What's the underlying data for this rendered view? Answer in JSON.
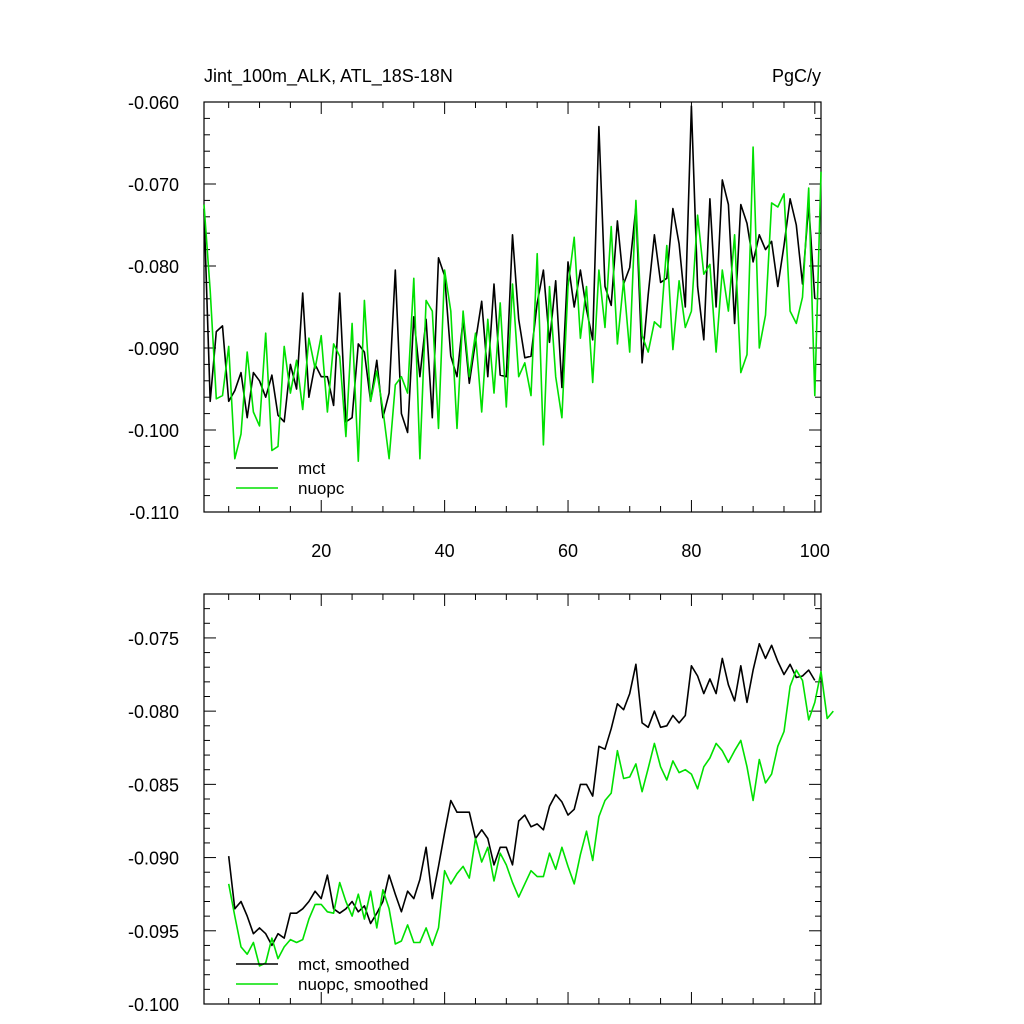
{
  "header": {
    "title": "Jint_100m_ALK, ATL_18S-18N",
    "units": "PgC/y"
  },
  "colors": {
    "mct": "#000000",
    "nuopc": "#00e000"
  },
  "chart_data": [
    {
      "type": "line",
      "xlim": [
        1,
        101
      ],
      "ylim": [
        -0.11,
        -0.06
      ],
      "xticks": [
        20,
        40,
        60,
        80,
        100
      ],
      "xtick_labels": [
        "20",
        "40",
        "60",
        "80",
        "100"
      ],
      "yticks": [
        -0.06,
        -0.07,
        -0.08,
        -0.09,
        -0.1,
        -0.11
      ],
      "ytick_labels": [
        "-0.060",
        "-0.070",
        "-0.080",
        "-0.090",
        "-0.100",
        "-0.110"
      ],
      "legend": {
        "position": "bottom-left"
      },
      "series": [
        {
          "name": "mct",
          "color": "#000000",
          "x_start": 1,
          "values": [
            -0.073,
            -0.0965,
            -0.088,
            -0.0873,
            -0.0965,
            -0.0952,
            -0.093,
            -0.0985,
            -0.093,
            -0.094,
            -0.096,
            -0.0933,
            -0.0982,
            -0.099,
            -0.092,
            -0.095,
            -0.0833,
            -0.096,
            -0.092,
            -0.0935,
            -0.0935,
            -0.097,
            -0.0833,
            -0.099,
            -0.0985,
            -0.0895,
            -0.0905,
            -0.0965,
            -0.0915,
            -0.0985,
            -0.0955,
            -0.0805,
            -0.098,
            -0.1003,
            -0.0862,
            -0.0935,
            -0.0865,
            -0.0985,
            -0.079,
            -0.0812,
            -0.091,
            -0.0935,
            -0.0865,
            -0.0943,
            -0.0892,
            -0.0843,
            -0.0935,
            -0.0822,
            -0.0933,
            -0.0935,
            -0.0762,
            -0.0865,
            -0.0912,
            -0.091,
            -0.0845,
            -0.0805,
            -0.0893,
            -0.0818,
            -0.0948,
            -0.0795,
            -0.085,
            -0.0805,
            -0.0853,
            -0.089,
            -0.063,
            -0.0825,
            -0.0848,
            -0.0745,
            -0.0822,
            -0.0802,
            -0.0728,
            -0.0918,
            -0.0835,
            -0.0762,
            -0.082,
            -0.0815,
            -0.073,
            -0.0773,
            -0.085,
            -0.0605,
            -0.0825,
            -0.089,
            -0.0718,
            -0.085,
            -0.0695,
            -0.0725,
            -0.087,
            -0.0725,
            -0.0748,
            -0.0795,
            -0.0762,
            -0.078,
            -0.077,
            -0.0825,
            -0.0775,
            -0.0718,
            -0.075,
            -0.0822,
            -0.0725,
            -0.084
          ]
        },
        {
          "name": "nuopc",
          "color": "#00e000",
          "x_start": 1,
          "values": [
            -0.0725,
            -0.083,
            -0.0962,
            -0.0958,
            -0.0898,
            -0.1035,
            -0.1005,
            -0.0905,
            -0.0978,
            -0.0995,
            -0.0882,
            -0.1025,
            -0.102,
            -0.0898,
            -0.0955,
            -0.0915,
            -0.0975,
            -0.0888,
            -0.0925,
            -0.0885,
            -0.0978,
            -0.0895,
            -0.091,
            -0.1008,
            -0.087,
            -0.1038,
            -0.0842,
            -0.0965,
            -0.0928,
            -0.0975,
            -0.1035,
            -0.0945,
            -0.0935,
            -0.0955,
            -0.0815,
            -0.1035,
            -0.0842,
            -0.0855,
            -0.0998,
            -0.0805,
            -0.0855,
            -0.0998,
            -0.0855,
            -0.0935,
            -0.0882,
            -0.0978,
            -0.0865,
            -0.0955,
            -0.0845,
            -0.0972,
            -0.0822,
            -0.0935,
            -0.0918,
            -0.0958,
            -0.0785,
            -0.1018,
            -0.0825,
            -0.0935,
            -0.0985,
            -0.0825,
            -0.0765,
            -0.0888,
            -0.0825,
            -0.0942,
            -0.0805,
            -0.0875,
            -0.0752,
            -0.0895,
            -0.0818,
            -0.0905,
            -0.072,
            -0.0885,
            -0.0905,
            -0.0868,
            -0.0875,
            -0.0775,
            -0.0902,
            -0.0818,
            -0.0875,
            -0.0855,
            -0.0738,
            -0.081,
            -0.0798,
            -0.0905,
            -0.0805,
            -0.0855,
            -0.0762,
            -0.093,
            -0.0908,
            -0.0655,
            -0.09,
            -0.086,
            -0.0723,
            -0.0728,
            -0.0712,
            -0.0855,
            -0.087,
            -0.0838,
            -0.0705,
            -0.0958,
            -0.0685
          ]
        }
      ]
    },
    {
      "type": "line",
      "xlim": [
        1,
        101
      ],
      "ylim": [
        -0.1,
        -0.072
      ],
      "xticks": [
        20,
        40,
        60,
        80,
        100
      ],
      "yticks": [
        -0.075,
        -0.08,
        -0.085,
        -0.09,
        -0.095,
        -0.1
      ],
      "ytick_labels": [
        "-0.075",
        "-0.080",
        "-0.085",
        "-0.090",
        "-0.095",
        "-0.100"
      ],
      "legend": {
        "position": "bottom-left"
      },
      "series": [
        {
          "name": "mct, smoothed",
          "color": "#000000",
          "x_start": 5,
          "values": [
            -0.0899,
            -0.0935,
            -0.093,
            -0.094,
            -0.0952,
            -0.0948,
            -0.0952,
            -0.096,
            -0.0952,
            -0.0955,
            -0.0938,
            -0.0938,
            -0.0935,
            -0.093,
            -0.0923,
            -0.0928,
            -0.0912,
            -0.0935,
            -0.0938,
            -0.0935,
            -0.093,
            -0.0937,
            -0.0933,
            -0.0945,
            -0.0938,
            -0.093,
            -0.0912,
            -0.0925,
            -0.0937,
            -0.0923,
            -0.0928,
            -0.0915,
            -0.0893,
            -0.0928,
            -0.0906,
            -0.0883,
            -0.0861,
            -0.0869,
            -0.0869,
            -0.0869,
            -0.0887,
            -0.0881,
            -0.0887,
            -0.0905,
            -0.0893,
            -0.0893,
            -0.0905,
            -0.0875,
            -0.0871,
            -0.0879,
            -0.0877,
            -0.0881,
            -0.0865,
            -0.0857,
            -0.0862,
            -0.0871,
            -0.0867,
            -0.085,
            -0.085,
            -0.0858,
            -0.0824,
            -0.0826,
            -0.0812,
            -0.0795,
            -0.0799,
            -0.0788,
            -0.0768,
            -0.0808,
            -0.0811,
            -0.08,
            -0.0811,
            -0.081,
            -0.0803,
            -0.0808,
            -0.0803,
            -0.0769,
            -0.0776,
            -0.0788,
            -0.0778,
            -0.0788,
            -0.0764,
            -0.0782,
            -0.0793,
            -0.0769,
            -0.0794,
            -0.0772,
            -0.0754,
            -0.0764,
            -0.0755,
            -0.0766,
            -0.0775,
            -0.0768,
            -0.0777,
            -0.0776,
            -0.0772,
            -0.0779
          ]
        },
        {
          "name": "nuopc, smoothed",
          "color": "#00e000",
          "x_start": 5,
          "values": [
            -0.0918,
            -0.094,
            -0.0961,
            -0.0966,
            -0.0958,
            -0.0974,
            -0.0972,
            -0.0955,
            -0.0969,
            -0.0961,
            -0.0956,
            -0.0958,
            -0.0956,
            -0.0942,
            -0.0932,
            -0.0932,
            -0.0937,
            -0.0938,
            -0.0917,
            -0.093,
            -0.094,
            -0.0925,
            -0.0942,
            -0.0923,
            -0.0948,
            -0.0922,
            -0.0935,
            -0.0959,
            -0.0957,
            -0.0946,
            -0.0958,
            -0.0958,
            -0.0948,
            -0.096,
            -0.0948,
            -0.0909,
            -0.0918,
            -0.0911,
            -0.0906,
            -0.0914,
            -0.0887,
            -0.0903,
            -0.0893,
            -0.0916,
            -0.0897,
            -0.0905,
            -0.0917,
            -0.0927,
            -0.0918,
            -0.0909,
            -0.0913,
            -0.0913,
            -0.0897,
            -0.0908,
            -0.0893,
            -0.0906,
            -0.0918,
            -0.0898,
            -0.0882,
            -0.0902,
            -0.0872,
            -0.0861,
            -0.0856,
            -0.0827,
            -0.0846,
            -0.0845,
            -0.0836,
            -0.0855,
            -0.0839,
            -0.0822,
            -0.0838,
            -0.0847,
            -0.0834,
            -0.0842,
            -0.084,
            -0.0843,
            -0.0853,
            -0.0838,
            -0.0832,
            -0.0822,
            -0.0827,
            -0.0835,
            -0.0827,
            -0.082,
            -0.0838,
            -0.0861,
            -0.0833,
            -0.0849,
            -0.0843,
            -0.0824,
            -0.0814,
            -0.0783,
            -0.0772,
            -0.0779,
            -0.0806,
            -0.0794,
            -0.0773,
            -0.0805,
            -0.08
          ]
        }
      ]
    }
  ]
}
